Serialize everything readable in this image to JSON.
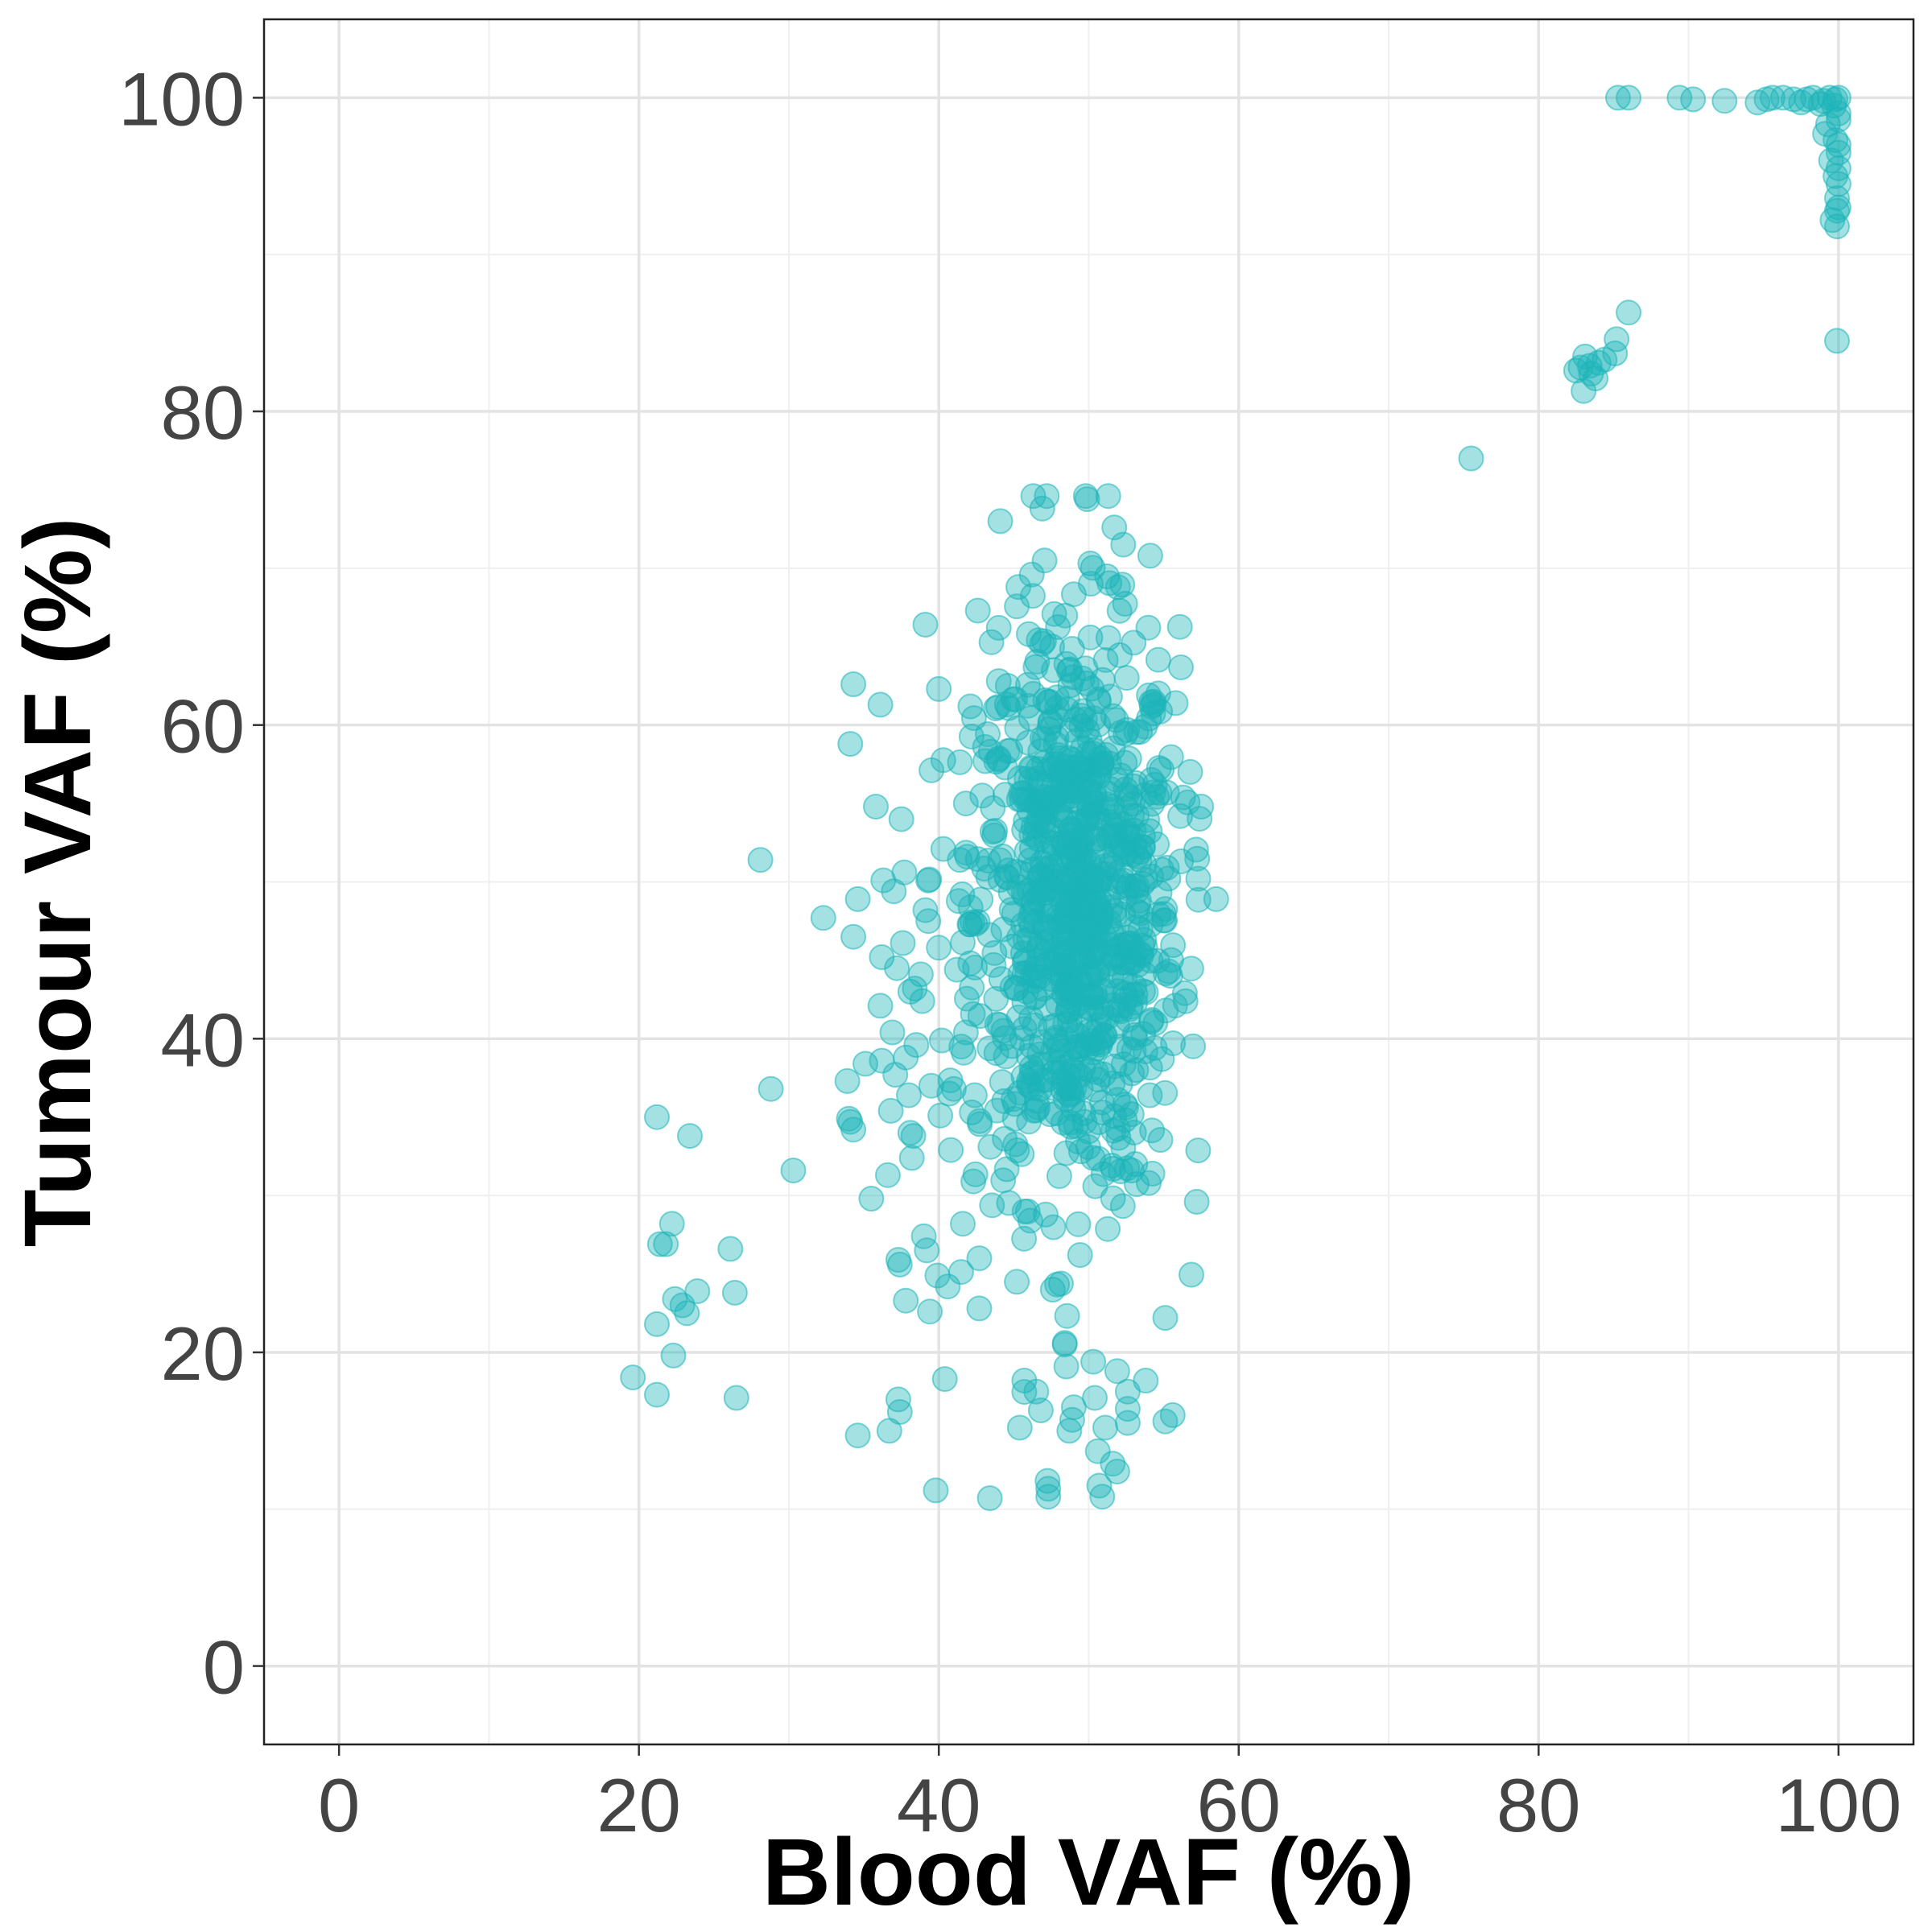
{
  "chart_data": {
    "type": "scatter",
    "xlabel": "Blood VAF (%)",
    "ylabel": "Tumour VAF (%)",
    "xlim": [
      -5,
      105
    ],
    "ylim": [
      -5,
      105
    ],
    "xticks": [
      0,
      20,
      40,
      60,
      80,
      100
    ],
    "yticks": [
      0,
      20,
      40,
      60,
      80,
      100
    ],
    "grid": true,
    "legend": "none",
    "point_color": "#1bb5b8",
    "point_opacity": 0.4,
    "points": [
      [
        19.6,
        18.4
      ],
      [
        21.2,
        17.3
      ],
      [
        21.2,
        21.8
      ],
      [
        21.2,
        35.0
      ],
      [
        21.4,
        26.9
      ],
      [
        21.8,
        26.9
      ],
      [
        22.2,
        28.2
      ],
      [
        22.3,
        19.8
      ],
      [
        22.4,
        23.4
      ],
      [
        22.9,
        23.0
      ],
      [
        23.2,
        22.5
      ],
      [
        23.4,
        33.8
      ],
      [
        23.9,
        23.9
      ],
      [
        26.1,
        26.6
      ],
      [
        26.4,
        23.8
      ],
      [
        26.5,
        17.1
      ],
      [
        28.1,
        51.4
      ],
      [
        28.8,
        36.8
      ],
      [
        30.3,
        31.6
      ],
      [
        32.3,
        47.7
      ],
      [
        33.9,
        37.3
      ],
      [
        34.0,
        34.9
      ],
      [
        34.1,
        34.7
      ],
      [
        34.1,
        58.8
      ],
      [
        34.3,
        34.2
      ],
      [
        34.3,
        62.6
      ],
      [
        34.3,
        46.5
      ],
      [
        34.6,
        48.9
      ],
      [
        34.6,
        14.7
      ],
      [
        35.1,
        38.4
      ],
      [
        35.5,
        29.8
      ],
      [
        35.8,
        54.8
      ],
      [
        36.1,
        61.3
      ],
      [
        36.1,
        42.1
      ],
      [
        36.2,
        38.6
      ],
      [
        36.2,
        45.2
      ],
      [
        36.3,
        50.1
      ],
      [
        36.6,
        31.3
      ],
      [
        36.7,
        15.0
      ],
      [
        36.8,
        35.4
      ],
      [
        36.9,
        40.4
      ],
      [
        37.0,
        49.4
      ],
      [
        37.1,
        37.7
      ],
      [
        37.2,
        44.5
      ],
      [
        37.3,
        25.9
      ],
      [
        37.3,
        17.0
      ],
      [
        37.4,
        16.2
      ],
      [
        37.4,
        25.6
      ],
      [
        37.5,
        54.0
      ],
      [
        37.6,
        46.1
      ],
      [
        37.7,
        50.6
      ],
      [
        37.8,
        23.3
      ],
      [
        37.8,
        38.8
      ],
      [
        38.0,
        36.4
      ],
      [
        38.1,
        34.0
      ],
      [
        38.1,
        43.0
      ],
      [
        38.2,
        32.4
      ],
      [
        38.3,
        33.8
      ],
      [
        38.4,
        43.2
      ],
      [
        38.5,
        39.6
      ],
      [
        38.8,
        44.1
      ],
      [
        38.9,
        42.4
      ],
      [
        39.0,
        27.4
      ],
      [
        39.1,
        48.2
      ],
      [
        39.1,
        66.4
      ],
      [
        39.2,
        26.5
      ],
      [
        39.3,
        47.5
      ],
      [
        39.4,
        22.6
      ],
      [
        39.5,
        37.0
      ],
      [
        39.8,
        11.2
      ],
      [
        39.9,
        24.9
      ],
      [
        40.0,
        62.3
      ],
      [
        40.0,
        45.8
      ],
      [
        40.1,
        35.1
      ],
      [
        40.3,
        52.1
      ],
      [
        40.4,
        18.3
      ],
      [
        40.6,
        24.2
      ],
      [
        40.7,
        36.5
      ],
      [
        40.8,
        32.9
      ],
      [
        41.0,
        36.8
      ],
      [
        41.2,
        44.4
      ],
      [
        41.4,
        51.4
      ],
      [
        41.5,
        39.5
      ],
      [
        41.6,
        28.2
      ],
      [
        41.8,
        55.0
      ],
      [
        41.9,
        51.6
      ],
      [
        42.1,
        47.3
      ],
      [
        42.2,
        35.3
      ],
      [
        42.3,
        30.9
      ],
      [
        42.4,
        36.4
      ],
      [
        42.6,
        67.3
      ],
      [
        42.7,
        26.0
      ],
      [
        42.7,
        22.8
      ],
      [
        42.9,
        55.5
      ],
      [
        43.1,
        57.7
      ],
      [
        43.4,
        10.7
      ],
      [
        43.6,
        54.7
      ],
      [
        44.0,
        62.8
      ],
      [
        44.0,
        66.2
      ],
      [
        44.1,
        73.0
      ],
      [
        44.6,
        62.5
      ],
      [
        45.2,
        24.5
      ],
      [
        45.3,
        68.8
      ],
      [
        45.4,
        15.2
      ],
      [
        45.7,
        18.2
      ],
      [
        46.0,
        65.8
      ],
      [
        46.1,
        28.4
      ],
      [
        46.2,
        69.6
      ],
      [
        46.3,
        74.6
      ],
      [
        46.5,
        17.5
      ],
      [
        46.8,
        16.3
      ],
      [
        46.9,
        73.8
      ],
      [
        47.2,
        74.6
      ],
      [
        47.3,
        11.3
      ],
      [
        47.3,
        10.8
      ],
      [
        47.6,
        24.0
      ],
      [
        48.4,
        20.6
      ],
      [
        48.4,
        20.5
      ],
      [
        48.5,
        19.1
      ],
      [
        48.7,
        15.0
      ],
      [
        48.9,
        15.7
      ],
      [
        49.0,
        16.5
      ],
      [
        49.8,
        74.6
      ],
      [
        49.9,
        74.4
      ],
      [
        50.1,
        70.3
      ],
      [
        50.3,
        19.4
      ],
      [
        50.4,
        17.1
      ],
      [
        50.6,
        13.7
      ],
      [
        50.7,
        11.5
      ],
      [
        50.9,
        10.8
      ],
      [
        51.1,
        15.2
      ],
      [
        51.3,
        74.6
      ],
      [
        51.6,
        12.9
      ],
      [
        51.7,
        72.6
      ],
      [
        51.9,
        12.4
      ],
      [
        51.9,
        18.8
      ],
      [
        52.3,
        71.5
      ],
      [
        52.6,
        15.5
      ],
      [
        52.6,
        17.5
      ],
      [
        52.6,
        16.4
      ],
      [
        53.8,
        18.2
      ],
      [
        54.0,
        30.8
      ],
      [
        54.1,
        70.8
      ],
      [
        54.4,
        56.2
      ],
      [
        55.1,
        22.2
      ],
      [
        55.1,
        15.6
      ],
      [
        55.6,
        16.0
      ],
      [
        55.8,
        61.4
      ],
      [
        56.1,
        54.2
      ],
      [
        57.2,
        29.6
      ],
      [
        57.3,
        50.2
      ],
      [
        57.5,
        54.8
      ],
      [
        58.5,
        48.9
      ],
      [
        75.5,
        77.0
      ],
      [
        82.5,
        82.6
      ],
      [
        82.8,
        82.8
      ],
      [
        83.0,
        81.3
      ],
      [
        83.1,
        83.5
      ],
      [
        83.4,
        82.9
      ],
      [
        83.5,
        82.4
      ],
      [
        83.8,
        82.1
      ],
      [
        84.0,
        83.1
      ],
      [
        84.4,
        83.3
      ],
      [
        85.1,
        83.7
      ],
      [
        85.2,
        84.6
      ],
      [
        86.0,
        86.3
      ],
      [
        85.3,
        100.0
      ],
      [
        86.0,
        100.0
      ],
      [
        89.4,
        100.0
      ],
      [
        90.3,
        99.9
      ],
      [
        92.4,
        99.8
      ],
      [
        94.6,
        99.7
      ],
      [
        95.2,
        99.9
      ],
      [
        95.6,
        100.0
      ],
      [
        96.3,
        100.0
      ],
      [
        97.0,
        99.9
      ],
      [
        97.5,
        99.7
      ],
      [
        97.9,
        99.9
      ],
      [
        98.3,
        100.0
      ],
      [
        98.8,
        99.6
      ],
      [
        99.1,
        97.7
      ],
      [
        99.3,
        98.3
      ],
      [
        99.5,
        96.0
      ],
      [
        99.6,
        92.2
      ],
      [
        99.7,
        99.5
      ],
      [
        99.8,
        97.3
      ],
      [
        99.8,
        95.0
      ],
      [
        99.9,
        92.8
      ],
      [
        99.9,
        93.6
      ],
      [
        99.9,
        91.8
      ],
      [
        99.9,
        84.5
      ],
      [
        100.0,
        99.0
      ],
      [
        100.0,
        98.6
      ],
      [
        100.0,
        97.0
      ],
      [
        100.0,
        96.5
      ],
      [
        100.0,
        95.5
      ],
      [
        100.0,
        94.5
      ],
      [
        100.0,
        93.0
      ],
      [
        100.0,
        100.0
      ],
      [
        99.8,
        99.9
      ],
      [
        99.4,
        100.0
      ],
      [
        99.0,
        99.8
      ]
    ],
    "cluster": {
      "count": 900,
      "center": [
        49.2,
        48.0
      ],
      "spread": [
        3.4,
        9.0
      ],
      "xrange": [
        38.0,
        58.0
      ],
      "yrange": [
        11.0,
        74.0
      ]
    }
  }
}
